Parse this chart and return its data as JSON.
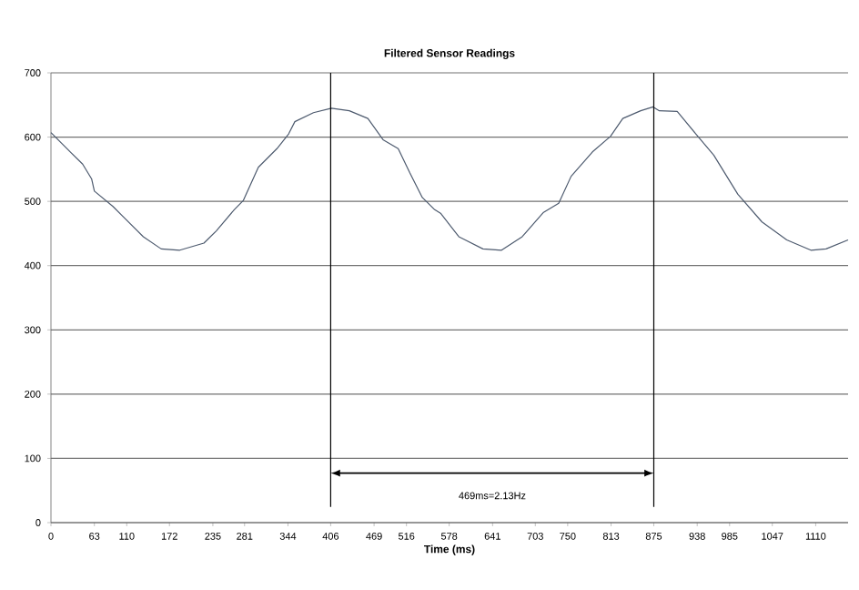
{
  "chart_data": {
    "type": "line",
    "title": "Filtered Sensor Readings",
    "xlabel": "Time (ms)",
    "x": [
      0,
      28,
      46,
      59,
      63,
      90,
      103,
      134,
      160,
      187,
      222,
      240,
      266,
      279,
      301,
      328,
      345,
      354,
      381,
      407,
      433,
      460,
      482,
      504,
      521,
      539,
      557,
      566,
      592,
      627,
      654,
      684,
      715,
      737,
      755,
      786,
      812,
      830,
      856,
      874,
      883,
      909,
      936,
      962,
      997,
      1032,
      1068,
      1103,
      1125,
      1157
    ],
    "series": [
      {
        "color": "#4d5a6e",
        "values": [
          607,
          577,
          558,
          535,
          516,
          492,
          478,
          445,
          426,
          424,
          435,
          454,
          487,
          501,
          553,
          582,
          605,
          624,
          638,
          645,
          641,
          629,
          596,
          582,
          544,
          506,
          487,
          481,
          445,
          426,
          424,
          445,
          483,
          497,
          539,
          577,
          601,
          629,
          641,
          647,
          641,
          640,
          605,
          572,
          511,
          468,
          440,
          424,
          426,
          440
        ]
      }
    ],
    "xlim": [
      0,
      1157
    ],
    "xticks": [
      0,
      63,
      110,
      172,
      235,
      281,
      344,
      406,
      469,
      516,
      578,
      641,
      703,
      750,
      813,
      875,
      938,
      985,
      1047,
      1110
    ],
    "ylim": [
      0,
      700
    ],
    "yticks": [
      0,
      100,
      200,
      300,
      400,
      500,
      600,
      700
    ],
    "grid": "y",
    "marker": "none",
    "line_style": "solid",
    "ref_lines": [
      {
        "axis": "x",
        "value": 406,
        "color": "#000000"
      },
      {
        "axis": "x",
        "value": 875,
        "color": "#000000"
      }
    ],
    "annotations": [
      "469ms=2.13Hz"
    ]
  }
}
